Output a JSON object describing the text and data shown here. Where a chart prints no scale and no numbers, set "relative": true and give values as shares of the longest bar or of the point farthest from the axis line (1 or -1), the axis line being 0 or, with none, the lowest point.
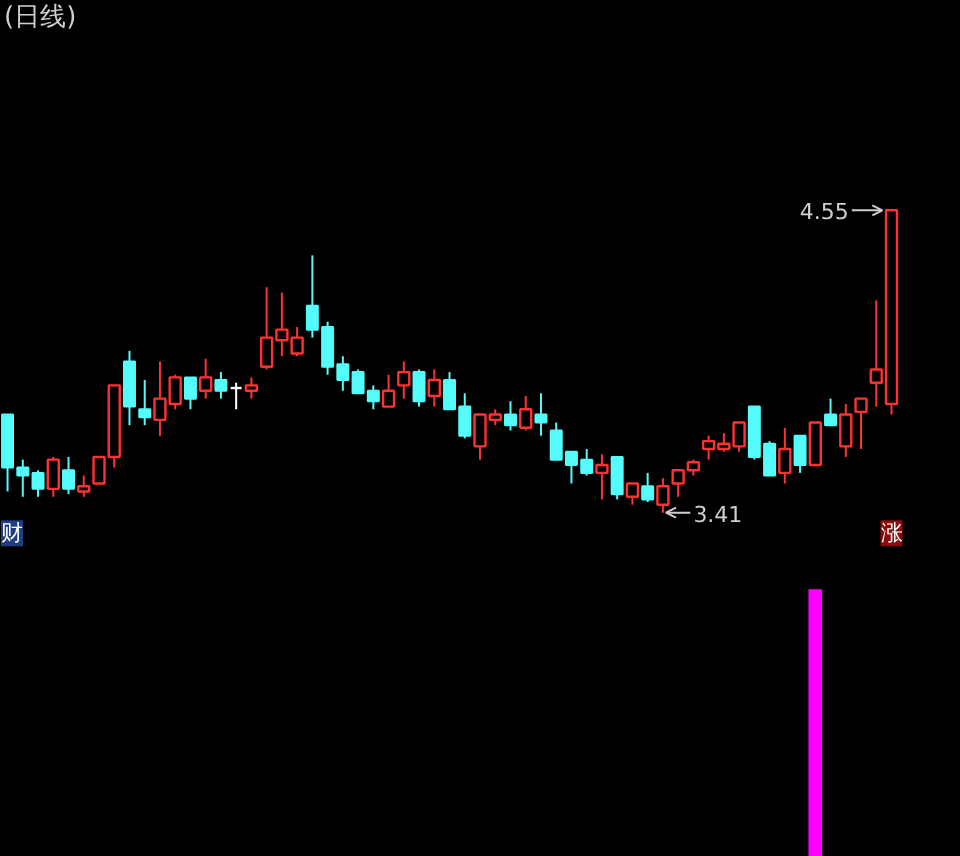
{
  "chart_data": [
    {
      "type": "candlestick",
      "title": "(日线)",
      "categories": [
        null,
        null,
        null,
        null,
        null,
        null,
        null,
        null,
        null,
        null,
        null,
        null,
        null,
        null,
        null,
        null,
        null,
        null,
        null,
        null,
        null,
        null,
        null,
        null,
        null,
        null,
        null,
        null,
        null,
        null,
        null,
        null,
        null,
        null,
        null,
        null,
        null,
        null,
        null,
        null,
        null,
        null,
        null,
        null,
        null,
        null,
        null,
        null,
        null,
        null,
        null,
        null,
        null,
        null,
        null,
        null,
        null,
        null,
        null
      ],
      "ohlc": [
        [
          3.78,
          3.78,
          3.49,
          3.58
        ],
        [
          3.58,
          3.61,
          3.47,
          3.55
        ],
        [
          3.56,
          3.57,
          3.47,
          3.5
        ],
        [
          3.5,
          3.62,
          3.47,
          3.61
        ],
        [
          3.57,
          3.62,
          3.48,
          3.5
        ],
        [
          3.49,
          3.55,
          3.47,
          3.51
        ],
        [
          3.52,
          3.62,
          3.52,
          3.62
        ],
        [
          3.62,
          3.89,
          3.58,
          3.89
        ],
        [
          3.98,
          4.02,
          3.74,
          3.81
        ],
        [
          3.8,
          3.91,
          3.74,
          3.77
        ],
        [
          3.76,
          3.98,
          3.7,
          3.84
        ],
        [
          3.82,
          3.93,
          3.8,
          3.92
        ],
        [
          3.92,
          3.92,
          3.8,
          3.84
        ],
        [
          3.87,
          3.99,
          3.84,
          3.92
        ],
        [
          3.91,
          3.94,
          3.84,
          3.87
        ],
        [
          3.88,
          3.9,
          3.8,
          3.88
        ],
        [
          3.87,
          3.92,
          3.84,
          3.89
        ],
        [
          3.96,
          4.26,
          3.95,
          4.07
        ],
        [
          4.06,
          4.24,
          4.0,
          4.1
        ],
        [
          4.01,
          4.11,
          4.0,
          4.07
        ],
        [
          4.19,
          4.38,
          4.07,
          4.1
        ],
        [
          4.11,
          4.13,
          3.93,
          3.96
        ],
        [
          3.97,
          4.0,
          3.87,
          3.91
        ],
        [
          3.94,
          3.95,
          3.86,
          3.86
        ],
        [
          3.87,
          3.89,
          3.8,
          3.83
        ],
        [
          3.81,
          3.93,
          3.81,
          3.87
        ],
        [
          3.89,
          3.98,
          3.84,
          3.94
        ],
        [
          3.94,
          3.95,
          3.81,
          3.83
        ],
        [
          3.85,
          3.95,
          3.81,
          3.91
        ],
        [
          3.91,
          3.94,
          3.8,
          3.8
        ],
        [
          3.81,
          3.86,
          3.69,
          3.7
        ],
        [
          3.66,
          3.78,
          3.61,
          3.78
        ],
        [
          3.76,
          3.8,
          3.74,
          3.78
        ],
        [
          3.78,
          3.83,
          3.72,
          3.74
        ],
        [
          3.73,
          3.85,
          3.72,
          3.8
        ],
        [
          3.78,
          3.86,
          3.7,
          3.75
        ],
        [
          3.72,
          3.75,
          3.61,
          3.61
        ],
        [
          3.64,
          3.64,
          3.52,
          3.59
        ],
        [
          3.61,
          3.65,
          3.55,
          3.56
        ],
        [
          3.56,
          3.63,
          3.46,
          3.59
        ],
        [
          3.62,
          3.62,
          3.46,
          3.48
        ],
        [
          3.47,
          3.52,
          3.44,
          3.52
        ],
        [
          3.51,
          3.56,
          3.45,
          3.46
        ],
        [
          3.44,
          3.54,
          3.41,
          3.51
        ],
        [
          3.52,
          3.57,
          3.47,
          3.57
        ],
        [
          3.57,
          3.61,
          3.55,
          3.6
        ],
        [
          3.65,
          3.7,
          3.61,
          3.68
        ],
        [
          3.65,
          3.71,
          3.64,
          3.67
        ],
        [
          3.66,
          3.75,
          3.64,
          3.75
        ],
        [
          3.81,
          3.81,
          3.61,
          3.62
        ],
        [
          3.67,
          3.68,
          3.55,
          3.55
        ],
        [
          3.56,
          3.73,
          3.52,
          3.65
        ],
        [
          3.7,
          3.7,
          3.56,
          3.59
        ],
        [
          3.59,
          3.75,
          3.59,
          3.75
        ],
        [
          3.78,
          3.84,
          3.74,
          3.74
        ],
        [
          3.66,
          3.82,
          3.62,
          3.78
        ],
        [
          3.79,
          3.84,
          3.65,
          3.84
        ],
        [
          3.9,
          4.21,
          3.81,
          3.95
        ],
        [
          3.82,
          4.55,
          3.78,
          4.55
        ]
      ],
      "colors": [
        "#54fcfc",
        "#54fcfc",
        "#54fcfc",
        "#ff3232",
        "#54fcfc",
        "#ff3232",
        "#ff3232",
        "#ff3232",
        "#54fcfc",
        "#54fcfc",
        "#ff3232",
        "#ff3232",
        "#54fcfc",
        "#ff3232",
        "#54fcfc",
        "#ffffff",
        "#ff3232",
        "#ff3232",
        "#ff3232",
        "#ff3232",
        "#54fcfc",
        "#54fcfc",
        "#54fcfc",
        "#54fcfc",
        "#54fcfc",
        "#ff3232",
        "#ff3232",
        "#54fcfc",
        "#ff3232",
        "#54fcfc",
        "#54fcfc",
        "#ff3232",
        "#ff3232",
        "#54fcfc",
        "#ff3232",
        "#54fcfc",
        "#54fcfc",
        "#54fcfc",
        "#54fcfc",
        "#ff3232",
        "#54fcfc",
        "#ff3232",
        "#54fcfc",
        "#ff3232",
        "#ff3232",
        "#ff3232",
        "#ff3232",
        "#ff3232",
        "#ff3232",
        "#54fcfc",
        "#54fcfc",
        "#ff3232",
        "#54fcfc",
        "#ff3232",
        "#54fcfc",
        "#ff3232",
        "#ff3232",
        "#ff3232",
        "#ff3232"
      ],
      "annotations": [
        "4.55",
        "3.41",
        "财",
        "涨"
      ]
    },
    {
      "type": "bar",
      "relative": true,
      "categories": [
        null,
        null,
        null,
        null,
        null,
        null,
        null,
        null,
        null,
        null,
        null,
        null,
        null,
        null,
        null,
        null,
        null,
        null,
        null,
        null,
        null,
        null,
        null,
        null,
        null,
        null,
        null,
        null,
        null,
        null,
        null,
        null,
        null,
        null,
        null,
        null,
        null,
        null,
        null,
        null,
        null,
        null,
        null,
        null,
        null,
        null,
        null,
        null,
        null,
        null,
        null,
        null,
        null,
        null,
        null,
        null,
        null,
        null,
        null
      ],
      "values": [
        null,
        null,
        null,
        null,
        null,
        null,
        null,
        null,
        null,
        null,
        null,
        null,
        null,
        null,
        null,
        null,
        null,
        null,
        null,
        null,
        null,
        null,
        null,
        null,
        null,
        null,
        null,
        null,
        null,
        null,
        null,
        null,
        null,
        null,
        null,
        null,
        null,
        null,
        null,
        null,
        null,
        null,
        null,
        null,
        null,
        null,
        null,
        null,
        null,
        null,
        null,
        null,
        null,
        1,
        null,
        null,
        null,
        null,
        null
      ],
      "color": "#ff00ff"
    }
  ]
}
